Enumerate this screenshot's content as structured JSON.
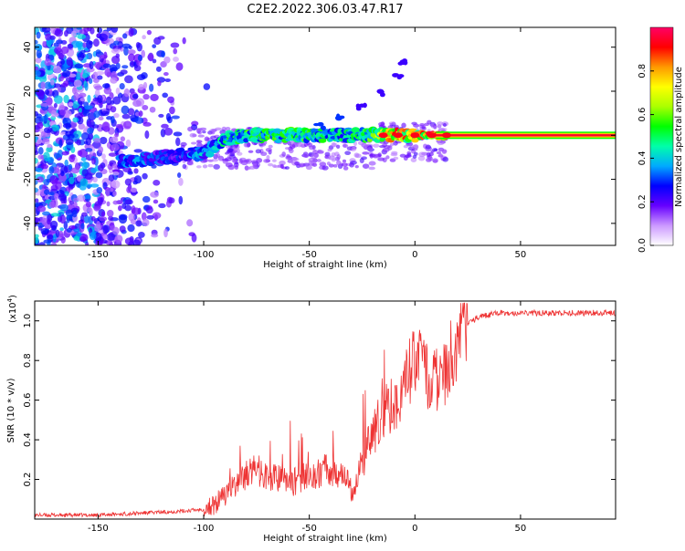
{
  "title": "C2E2.2022.306.03.47.R17",
  "chart_data": [
    {
      "type": "heatmap",
      "xlabel": "Height of straight line (km)",
      "ylabel": "Frequency (Hz)",
      "xlim": [
        -180,
        95
      ],
      "ylim": [
        -50,
        49
      ],
      "x_ticks": [
        -150,
        -100,
        -50,
        0,
        50
      ],
      "y_ticks": [
        -40,
        -20,
        0,
        20,
        40
      ],
      "colorbar": {
        "label": "Normalized spectral amplitude",
        "range": [
          0.0,
          1.0
        ],
        "ticks": [
          0.0,
          0.2,
          0.4,
          0.6,
          0.8
        ],
        "colors": [
          "#ffffff",
          "#cc99ff",
          "#6600ff",
          "#0000ff",
          "#00aaff",
          "#00ffaa",
          "#00ff00",
          "#aaff00",
          "#ffff00",
          "#ff9900",
          "#ff0000",
          "#ff0066"
        ]
      },
      "ridge": [
        {
          "x": -140,
          "y": -12,
          "amp": 0.35
        },
        {
          "x": -130,
          "y": -11,
          "amp": 0.35
        },
        {
          "x": -120,
          "y": -10,
          "amp": 0.3
        },
        {
          "x": -110,
          "y": -9,
          "amp": 0.3
        },
        {
          "x": -100,
          "y": -8,
          "amp": 0.4
        },
        {
          "x": -90,
          "y": -2,
          "amp": 0.5
        },
        {
          "x": -80,
          "y": 0,
          "amp": 0.55
        },
        {
          "x": -70,
          "y": 0,
          "amp": 0.55
        },
        {
          "x": -60,
          "y": 0,
          "amp": 0.55
        },
        {
          "x": -50,
          "y": 0,
          "amp": 0.55
        },
        {
          "x": -40,
          "y": 0,
          "amp": 0.5
        },
        {
          "x": -30,
          "y": 0,
          "amp": 0.5
        },
        {
          "x": -20,
          "y": 0,
          "amp": 0.6
        },
        {
          "x": -10,
          "y": 0,
          "amp": 0.85
        },
        {
          "x": 0,
          "y": 0,
          "amp": 0.85
        },
        {
          "x": 15,
          "y": 0,
          "amp": 0.9
        },
        {
          "x": 95,
          "y": 0,
          "amp": 0.95
        }
      ],
      "branch": [
        {
          "x": -45,
          "y": 4
        },
        {
          "x": -35,
          "y": 8
        },
        {
          "x": -25,
          "y": 13
        },
        {
          "x": -15,
          "y": 19
        },
        {
          "x": -8,
          "y": 27
        },
        {
          "x": -5,
          "y": 33
        }
      ]
    },
    {
      "type": "line",
      "xlabel": "Height of straight line (km)",
      "ylabel": "SNR (10 * v/v)",
      "y_multiplier": "(x10⁴)",
      "y_multiplier_base": "(x10",
      "y_multiplier_exp": "4",
      "y_multiplier_close": ")",
      "xlim": [
        -180,
        95
      ],
      "ylim": [
        0.0,
        1.1
      ],
      "x_ticks": [
        -150,
        -100,
        -50,
        0,
        50
      ],
      "y_ticks": [
        0.2,
        0.4,
        0.6,
        0.8,
        1.0
      ],
      "series": [
        {
          "color": "#ee3333",
          "x": [
            -180,
            -150,
            -130,
            -110,
            -100,
            -95,
            -90,
            -85,
            -80,
            -75,
            -70,
            -65,
            -60,
            -55,
            -50,
            -45,
            -40,
            -35,
            -30,
            -25,
            -20,
            -15,
            -10,
            -5,
            0,
            5,
            10,
            15,
            20,
            25,
            30,
            40,
            60,
            95
          ],
          "y": [
            0.02,
            0.02,
            0.03,
            0.04,
            0.05,
            0.07,
            0.12,
            0.18,
            0.22,
            0.25,
            0.22,
            0.2,
            0.18,
            0.2,
            0.22,
            0.24,
            0.25,
            0.22,
            0.15,
            0.28,
            0.42,
            0.55,
            0.58,
            0.68,
            0.82,
            0.72,
            0.7,
            0.72,
            0.9,
            0.98,
            1.02,
            1.04,
            1.04,
            1.04
          ]
        }
      ]
    }
  ]
}
